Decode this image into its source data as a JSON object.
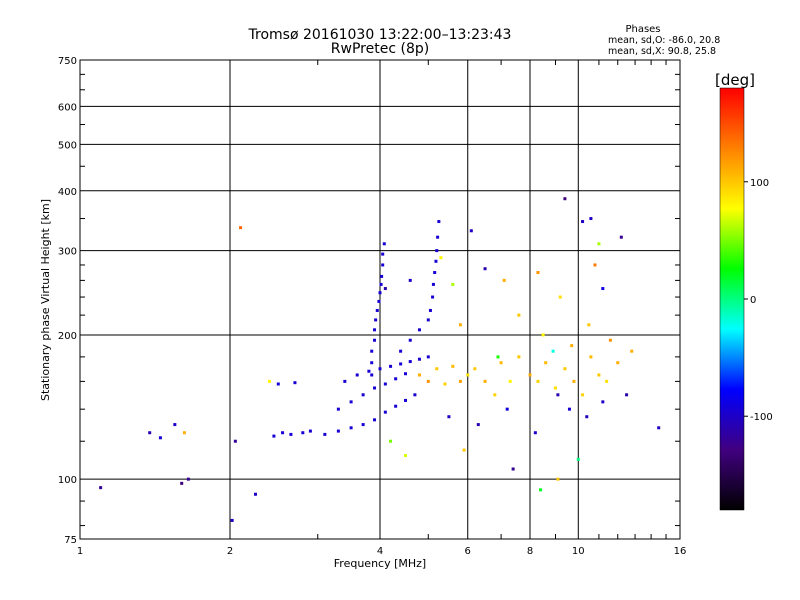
{
  "chart_data": {
    "type": "scatter",
    "title": "Tromsø 20161030 13:22:00–13:23:43",
    "subtitle": "RwPretec (8p)",
    "xlabel": "Frequency [MHz]",
    "ylabel": "Stationary phase Virtual Height [km]",
    "x_scale": "log",
    "y_scale": "log",
    "xlim": [
      1,
      16
    ],
    "ylim": [
      75,
      750
    ],
    "x_ticks": [
      1,
      2,
      4,
      6,
      8,
      10,
      16
    ],
    "x_tick_labels": [
      "1",
      "2",
      "4",
      "6",
      "8",
      "10",
      "16"
    ],
    "y_ticks": [
      75,
      100,
      200,
      300,
      400,
      500,
      600,
      750
    ],
    "y_tick_labels": [
      "75",
      "100",
      "200",
      "300",
      "400",
      "500",
      "600",
      "750"
    ],
    "grid": true,
    "phase_info": {
      "title": "Phases",
      "line1": "mean, sd,O: -86.0, 20.8",
      "line2": "mean, sd,X:  90.8, 25.8"
    },
    "colorbar": {
      "label": "[deg]",
      "range": [
        -180,
        180
      ],
      "ticks": [
        100,
        0,
        -100
      ],
      "tick_labels": [
        "100",
        "0",
        "-100"
      ],
      "colormap": [
        "#ff0000",
        "#ff8000",
        "#ffff00",
        "#00ff00",
        "#00ffff",
        "#0000ff",
        "#400080",
        "#000000"
      ]
    },
    "o_trace": [
      [
        2.45,
        123
      ],
      [
        2.55,
        125
      ],
      [
        2.65,
        124
      ],
      [
        2.8,
        125
      ],
      [
        2.9,
        126
      ],
      [
        3.1,
        124
      ],
      [
        3.3,
        126
      ],
      [
        3.5,
        128
      ],
      [
        3.7,
        130
      ],
      [
        3.9,
        133
      ],
      [
        4.1,
        138
      ],
      [
        4.3,
        142
      ],
      [
        4.5,
        146
      ],
      [
        4.7,
        150
      ],
      [
        3.3,
        140
      ],
      [
        3.5,
        145
      ],
      [
        3.7,
        150
      ],
      [
        3.9,
        155
      ],
      [
        4.1,
        158
      ],
      [
        4.3,
        162
      ],
      [
        4.5,
        166
      ],
      [
        2.5,
        158
      ],
      [
        2.7,
        159
      ],
      [
        3.4,
        160
      ],
      [
        3.6,
        165
      ],
      [
        3.8,
        168
      ],
      [
        4.0,
        170
      ],
      [
        4.2,
        172
      ],
      [
        4.4,
        174
      ],
      [
        4.6,
        176
      ],
      [
        4.8,
        178
      ],
      [
        5.0,
        180
      ],
      [
        3.85,
        165
      ],
      [
        3.85,
        175
      ],
      [
        3.85,
        185
      ],
      [
        3.9,
        195
      ],
      [
        3.9,
        205
      ],
      [
        3.92,
        215
      ],
      [
        3.95,
        225
      ],
      [
        3.98,
        235
      ],
      [
        4.0,
        245
      ],
      [
        4.02,
        255
      ],
      [
        4.03,
        265
      ],
      [
        4.05,
        280
      ],
      [
        4.05,
        295
      ],
      [
        4.08,
        310
      ],
      [
        4.4,
        185
      ],
      [
        4.6,
        195
      ],
      [
        4.8,
        205
      ],
      [
        5.0,
        215
      ],
      [
        5.05,
        225
      ],
      [
        5.1,
        240
      ],
      [
        5.12,
        255
      ],
      [
        5.15,
        270
      ],
      [
        5.18,
        285
      ],
      [
        5.2,
        300
      ],
      [
        5.22,
        320
      ],
      [
        5.25,
        345
      ]
    ],
    "scatter_points": [
      [
        1.1,
        96,
        -120
      ],
      [
        1.38,
        125,
        -110
      ],
      [
        1.45,
        122,
        -95
      ],
      [
        1.55,
        130,
        -100
      ],
      [
        1.62,
        125,
        110
      ],
      [
        1.6,
        98,
        -130
      ],
      [
        1.65,
        100,
        -120
      ],
      [
        2.02,
        82,
        -100
      ],
      [
        2.05,
        120,
        -120
      ],
      [
        2.1,
        335,
        140
      ],
      [
        2.25,
        93,
        -100
      ],
      [
        2.4,
        160,
        80
      ],
      [
        4.8,
        165,
        110
      ],
      [
        5.0,
        160,
        120
      ],
      [
        5.2,
        170,
        100
      ],
      [
        5.4,
        158,
        95
      ],
      [
        5.6,
        172,
        105
      ],
      [
        5.8,
        160,
        115
      ],
      [
        6.0,
        165,
        90
      ],
      [
        6.2,
        170,
        100
      ],
      [
        6.5,
        160,
        110
      ],
      [
        6.8,
        150,
        95
      ],
      [
        7.0,
        175,
        105
      ],
      [
        7.3,
        160,
        80
      ],
      [
        7.6,
        180,
        100
      ],
      [
        8.0,
        165,
        110
      ],
      [
        8.3,
        160,
        95
      ],
      [
        8.6,
        175,
        105
      ],
      [
        9.0,
        155,
        90
      ],
      [
        9.4,
        170,
        100
      ],
      [
        9.8,
        160,
        110
      ],
      [
        10.2,
        150,
        95
      ],
      [
        10.6,
        180,
        105
      ],
      [
        11.0,
        165,
        100
      ],
      [
        11.4,
        160,
        90
      ],
      [
        12.0,
        175,
        110
      ],
      [
        5.5,
        135,
        -100
      ],
      [
        6.3,
        130,
        -110
      ],
      [
        7.2,
        140,
        -90
      ],
      [
        8.2,
        125,
        -100
      ],
      [
        9.1,
        150,
        -110
      ],
      [
        9.6,
        140,
        -95
      ],
      [
        10.4,
        135,
        -105
      ],
      [
        11.2,
        145,
        -100
      ],
      [
        12.5,
        150,
        -110
      ],
      [
        14.5,
        128,
        -100
      ],
      [
        5.3,
        290,
        80
      ],
      [
        5.6,
        255,
        60
      ],
      [
        6.1,
        330,
        -100
      ],
      [
        6.5,
        275,
        -110
      ],
      [
        7.1,
        260,
        110
      ],
      [
        8.3,
        270,
        120
      ],
      [
        9.2,
        240,
        90
      ],
      [
        10.2,
        345,
        -100
      ],
      [
        10.6,
        350,
        -100
      ],
      [
        11.0,
        310,
        60
      ],
      [
        12.2,
        320,
        -120
      ],
      [
        9.4,
        385,
        -130
      ],
      [
        10.8,
        280,
        130
      ],
      [
        11.2,
        250,
        -90
      ],
      [
        4.2,
        120,
        50
      ],
      [
        4.5,
        112,
        70
      ],
      [
        5.9,
        115,
        100
      ],
      [
        7.4,
        105,
        -120
      ],
      [
        8.4,
        95,
        20
      ],
      [
        9.1,
        100,
        100
      ],
      [
        10.0,
        110,
        0
      ],
      [
        4.1,
        250,
        -110
      ],
      [
        4.6,
        260,
        -100
      ],
      [
        5.8,
        210,
        110
      ],
      [
        7.6,
        220,
        100
      ],
      [
        8.5,
        200,
        80
      ],
      [
        9.7,
        190,
        110
      ],
      [
        10.5,
        210,
        100
      ],
      [
        11.6,
        195,
        120
      ],
      [
        12.8,
        185,
        110
      ],
      [
        6.9,
        180,
        30
      ],
      [
        8.9,
        185,
        -20
      ]
    ]
  }
}
